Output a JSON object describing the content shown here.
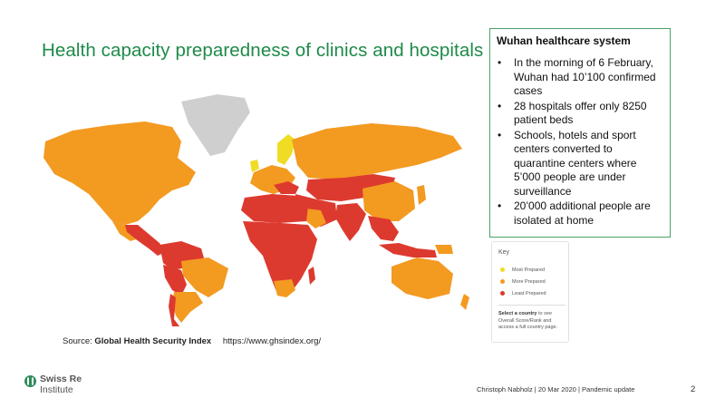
{
  "title": "Health capacity preparedness of clinics and hospitals",
  "source": {
    "label": "Source:",
    "name": "Global Health Security Index",
    "url": "https://www.ghsindex.org/"
  },
  "infobox": {
    "heading": "Wuhan healthcare system",
    "bullets": [
      "In the morning of 6 February, Wuhan had 10’100 confirmed cases",
      "28 hospitals offer only 8250 patient beds",
      "Schools, hotels and sport centers converted to quarantine centers where 5’000 people are under surveillance",
      "20’000 additional people are isolated at home"
    ],
    "bullet_char": "•"
  },
  "key": {
    "title": "Key",
    "items": [
      {
        "label": "Most Prepared",
        "color": "#f0dc24"
      },
      {
        "label": "More Prepared",
        "color": "#f39a21"
      },
      {
        "label": "Least Prepared",
        "color": "#dd3a2f"
      }
    ],
    "note_bold": "Select a country",
    "note_rest": " to see Overall Score/Rank and access a full country page."
  },
  "map_colors": {
    "most": "#f0dc24",
    "more": "#f39a21",
    "least": "#dd3a2f",
    "nodata": "#cfcfcf"
  },
  "logo": {
    "line1": "Swiss Re",
    "line2": "Institute"
  },
  "footer": "Christoph Nabholz | 20 Mar 2020 | Pandemic update",
  "page_number": "2"
}
